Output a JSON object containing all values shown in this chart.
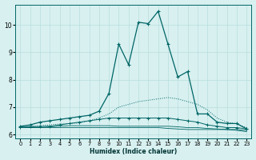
{
  "xlabel": "Humidex (Indice chaleur)",
  "bg_color": "#d8f0f0",
  "line_color": "#006666",
  "grid_color": "#b8dede",
  "xlim": [
    -0.5,
    23.5
  ],
  "ylim": [
    5.85,
    10.75
  ],
  "xticks": [
    0,
    1,
    2,
    3,
    4,
    5,
    6,
    7,
    8,
    9,
    10,
    11,
    12,
    13,
    14,
    15,
    16,
    17,
    18,
    19,
    20,
    21,
    22,
    23
  ],
  "yticks": [
    6,
    7,
    8,
    9,
    10
  ],
  "line_main_x": [
    0,
    1,
    2,
    3,
    4,
    5,
    6,
    7,
    8,
    9,
    10,
    11,
    12,
    13,
    14,
    15,
    16,
    17,
    18,
    19,
    20,
    21,
    22,
    23
  ],
  "line_main_y": [
    6.3,
    6.35,
    6.45,
    6.5,
    6.55,
    6.6,
    6.65,
    6.7,
    6.85,
    7.5,
    9.3,
    8.55,
    10.1,
    10.05,
    10.5,
    9.3,
    8.1,
    8.3,
    6.75,
    6.75,
    6.45,
    6.4,
    6.4,
    6.2
  ],
  "line_dot_x": [
    0,
    1,
    2,
    3,
    4,
    5,
    6,
    7,
    8,
    9,
    10,
    11,
    12,
    13,
    14,
    15,
    16,
    17,
    18,
    19,
    20,
    21,
    22,
    23
  ],
  "line_dot_y": [
    6.28,
    6.3,
    6.32,
    6.35,
    6.38,
    6.4,
    6.42,
    6.5,
    6.6,
    6.75,
    7.0,
    7.1,
    7.2,
    7.25,
    7.3,
    7.35,
    7.3,
    7.2,
    7.1,
    6.9,
    6.6,
    6.45,
    6.38,
    6.25
  ],
  "line_flat1_x": [
    0,
    1,
    2,
    3,
    4,
    5,
    6,
    7,
    8,
    9,
    10,
    11,
    12,
    13,
    14,
    15,
    16,
    17,
    18,
    19,
    20,
    21,
    22,
    23
  ],
  "line_flat1_y": [
    6.27,
    6.28,
    6.29,
    6.3,
    6.35,
    6.4,
    6.45,
    6.5,
    6.55,
    6.6,
    6.6,
    6.6,
    6.6,
    6.6,
    6.6,
    6.6,
    6.55,
    6.5,
    6.45,
    6.35,
    6.3,
    6.25,
    6.25,
    6.2
  ],
  "line_flat2_x": [
    0,
    1,
    2,
    3,
    4,
    5,
    6,
    7,
    8,
    9,
    10,
    11,
    12,
    13,
    14,
    15,
    16,
    17,
    18,
    19,
    20,
    21,
    22,
    23
  ],
  "line_flat2_y": [
    6.25,
    6.25,
    6.25,
    6.28,
    6.3,
    6.32,
    6.32,
    6.32,
    6.32,
    6.32,
    6.3,
    6.3,
    6.3,
    6.3,
    6.3,
    6.3,
    6.28,
    6.25,
    6.25,
    6.22,
    6.2,
    6.18,
    6.18,
    6.15
  ],
  "line_flat3_x": [
    0,
    1,
    2,
    3,
    4,
    5,
    6,
    7,
    8,
    9,
    10,
    11,
    12,
    13,
    14,
    15,
    16,
    17,
    18,
    19,
    20,
    21,
    22,
    23
  ],
  "line_flat3_y": [
    6.25,
    6.25,
    6.25,
    6.25,
    6.25,
    6.25,
    6.25,
    6.25,
    6.25,
    6.25,
    6.25,
    6.25,
    6.25,
    6.25,
    6.25,
    6.22,
    6.2,
    6.18,
    6.18,
    6.18,
    6.18,
    6.18,
    6.15,
    6.1
  ]
}
